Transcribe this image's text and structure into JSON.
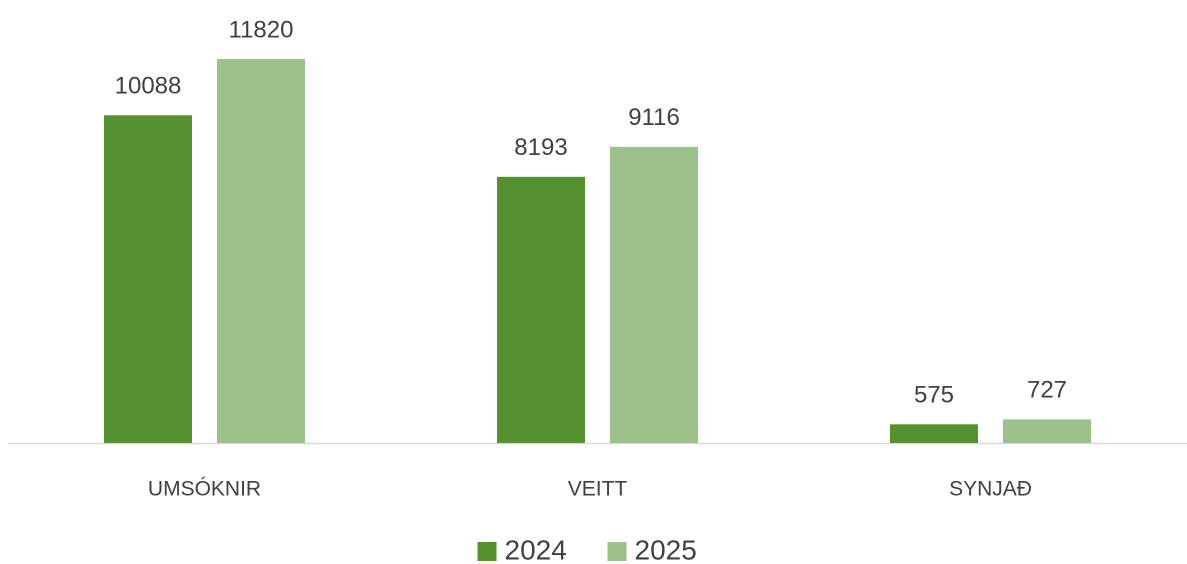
{
  "chart_data": {
    "type": "bar",
    "categories": [
      "UMSÓKNIR",
      "VEITT",
      "SYNJAÐ"
    ],
    "series": [
      {
        "name": "2024",
        "color": "#559130",
        "values": [
          10088,
          8193,
          575
        ]
      },
      {
        "name": "2025",
        "color": "#9dc18b",
        "values": [
          11820,
          9116,
          727
        ]
      }
    ],
    "legend": "bottom"
  }
}
